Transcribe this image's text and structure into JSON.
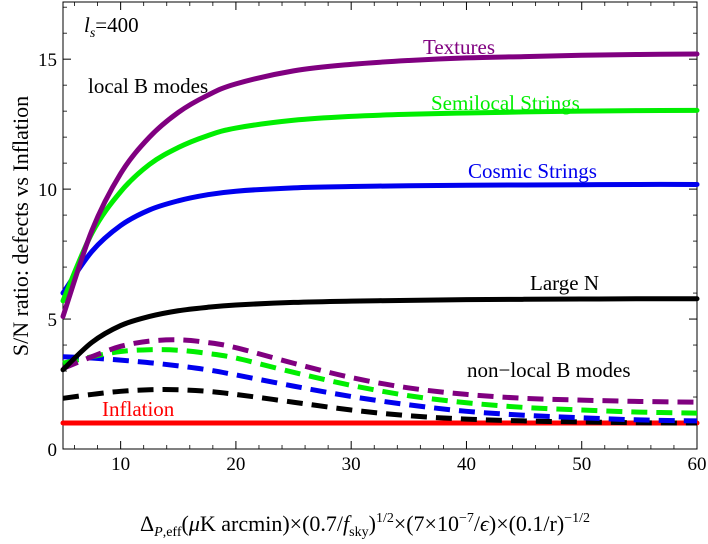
{
  "chart_data": {
    "type": "line",
    "title": "",
    "ylabel": "S/N ratio:  defects vs Inflation",
    "xlabel": "Δ_{P,eff}(μK arcmin)×(0.7/f_sky)^{1/2}×(7×10^{-7}/ε)×(0.1/r)^{-1/2}",
    "xlim": [
      5,
      60
    ],
    "ylim": [
      0,
      17.2
    ],
    "xticks": [
      10,
      20,
      30,
      40,
      50,
      60
    ],
    "yticks": [
      0,
      5,
      10,
      15
    ],
    "grid": false,
    "annotations": {
      "ls_label": "l",
      "ls_sub": "s",
      "ls_value": "=400",
      "local_label": "local B modes",
      "nonlocal_label": "non−local B modes"
    },
    "x": [
      5,
      7.5,
      10,
      12.5,
      15,
      17.5,
      20,
      25,
      30,
      35,
      40,
      45,
      50,
      55,
      60
    ],
    "series": [
      {
        "name": "Textures",
        "style": "solid",
        "color": "#800080",
        "values": [
          5.1,
          8.4,
          10.6,
          12.0,
          12.95,
          13.6,
          14.05,
          14.55,
          14.8,
          14.95,
          15.05,
          15.1,
          15.15,
          15.18,
          15.2
        ]
      },
      {
        "name": "Semilocal Strings",
        "style": "solid",
        "color": "#00ee00",
        "values": [
          5.7,
          8.3,
          9.9,
          10.95,
          11.6,
          12.05,
          12.35,
          12.65,
          12.8,
          12.88,
          12.93,
          12.97,
          13.0,
          13.02,
          13.03
        ]
      },
      {
        "name": "Cosmic Strings",
        "style": "solid",
        "color": "#0000ee",
        "values": [
          6.0,
          7.6,
          8.6,
          9.2,
          9.55,
          9.78,
          9.92,
          10.05,
          10.1,
          10.13,
          10.15,
          10.16,
          10.17,
          10.18,
          10.18
        ]
      },
      {
        "name": "Large N",
        "style": "solid",
        "color": "#000000",
        "values": [
          3.05,
          4.1,
          4.75,
          5.1,
          5.32,
          5.45,
          5.54,
          5.64,
          5.69,
          5.72,
          5.75,
          5.76,
          5.77,
          5.78,
          5.78
        ]
      },
      {
        "name": "Inflation",
        "style": "solid",
        "color": "#ff0000",
        "values": [
          1.0,
          1.0,
          1.0,
          1.0,
          1.0,
          1.0,
          1.0,
          1.0,
          1.0,
          1.0,
          1.0,
          1.0,
          1.0,
          1.0,
          1.0
        ]
      },
      {
        "name": "",
        "style": "dashed",
        "color": "#800080",
        "values": [
          3.1,
          3.55,
          3.95,
          4.15,
          4.2,
          4.1,
          3.9,
          3.3,
          2.75,
          2.35,
          2.1,
          1.95,
          1.88,
          1.83,
          1.8
        ]
      },
      {
        "name": "",
        "style": "dashed",
        "color": "#00ee00",
        "values": [
          3.3,
          3.55,
          3.75,
          3.82,
          3.8,
          3.68,
          3.5,
          2.95,
          2.45,
          2.05,
          1.78,
          1.6,
          1.5,
          1.42,
          1.38
        ]
      },
      {
        "name": "",
        "style": "dashed",
        "color": "#0000ee",
        "values": [
          3.55,
          3.5,
          3.42,
          3.32,
          3.2,
          3.05,
          2.85,
          2.42,
          2.02,
          1.7,
          1.45,
          1.3,
          1.2,
          1.12,
          1.08
        ]
      },
      {
        "name": "",
        "style": "dashed",
        "color": "#000000",
        "values": [
          1.95,
          2.1,
          2.22,
          2.28,
          2.28,
          2.22,
          2.1,
          1.8,
          1.5,
          1.28,
          1.15,
          1.08,
          1.04,
          1.01,
          1.0
        ]
      }
    ]
  }
}
